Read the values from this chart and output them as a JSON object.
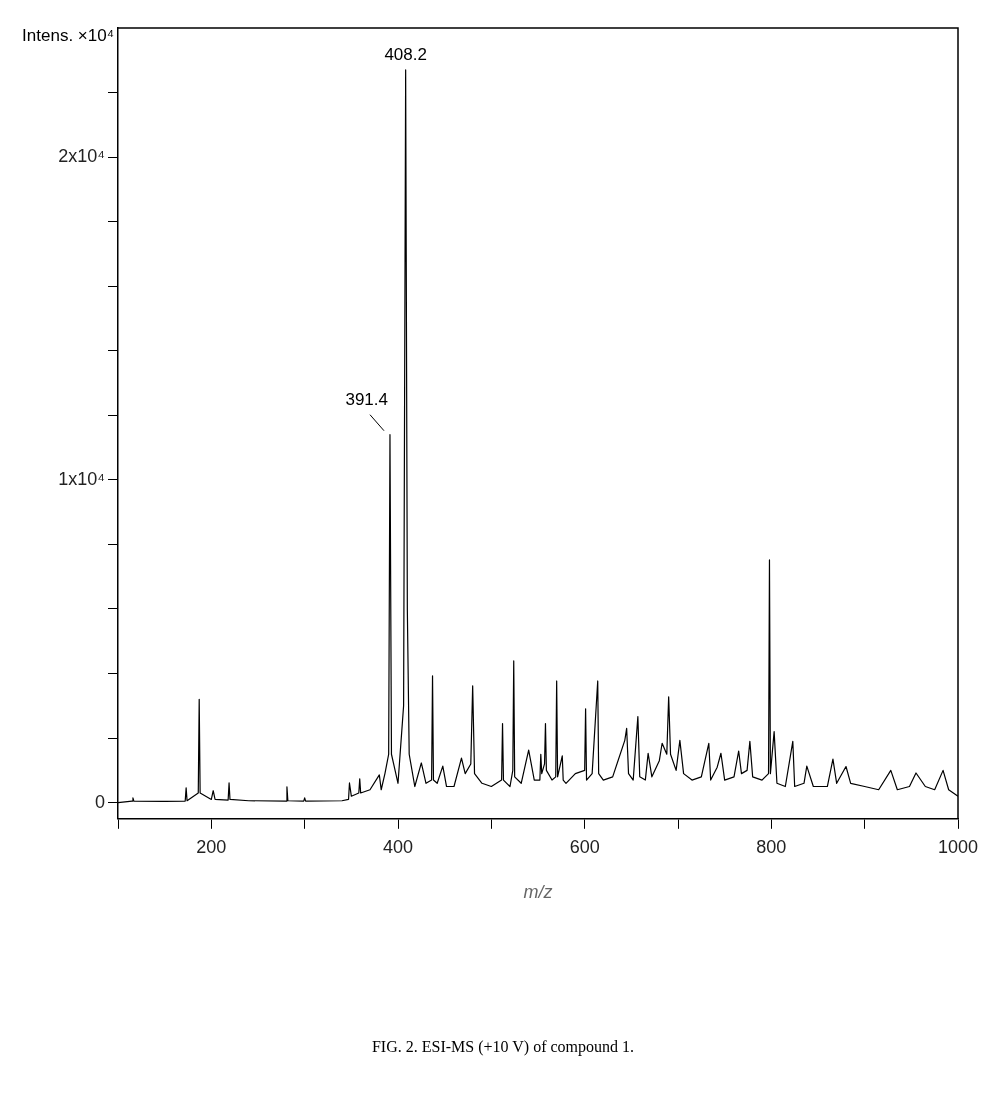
{
  "chart_data": {
    "type": "line",
    "title": "FIG. 2. ESI-MS (+10 V) of compound 1.",
    "xlabel": "m/z",
    "ylabel": "Intens. ×10⁴",
    "marker": "none",
    "grid": false,
    "legend": false,
    "xlim": [
      100,
      1000
    ],
    "xticks": [
      {
        "value": 100,
        "label": null
      },
      200,
      {
        "value": 300,
        "label": null
      },
      400,
      {
        "value": 500,
        "label": null
      },
      600,
      {
        "value": 700,
        "label": null
      },
      800,
      {
        "value": 900,
        "label": null
      },
      1000
    ],
    "ylim": [
      -500,
      24000
    ],
    "yticks": [
      0,
      {
        "value": 2000,
        "label": null
      },
      {
        "value": 4000,
        "label": null
      },
      {
        "value": 6000,
        "label": null
      },
      {
        "value": 8000,
        "label": null
      },
      {
        "value": 10000,
        "label": "1x10⁴"
      },
      {
        "value": 12000,
        "label": null
      },
      {
        "value": 14000,
        "label": null
      },
      {
        "value": 16000,
        "label": null
      },
      {
        "value": 18000,
        "label": null
      },
      {
        "value": 20000,
        "label": "2x10⁴"
      },
      {
        "value": 22000,
        "label": null
      }
    ],
    "annotations": [
      {
        "text": "408.2",
        "x": 408.2,
        "y": 22700
      },
      {
        "text": "391.4",
        "x": 391.4,
        "y": 11400
      }
    ],
    "series": [
      {
        "color": "#000000",
        "x": [
          100,
          115,
          116,
          117,
          150,
          172,
          173,
          174,
          186,
          187,
          188,
          200,
          202,
          204,
          218,
          219,
          220,
          240,
          280,
          281,
          282,
          299,
          300,
          301,
          340,
          347,
          348,
          350,
          358,
          359,
          360,
          370,
          380,
          382,
          386,
          390,
          391.4,
          393,
          400,
          406,
          408.2,
          410,
          412,
          418,
          425,
          430,
          436,
          437,
          438,
          442,
          448,
          452,
          460,
          468,
          472,
          478,
          480,
          482,
          490,
          500,
          511,
          512,
          513,
          520,
          523,
          524,
          525,
          532,
          540,
          546,
          552,
          553,
          554,
          557,
          558,
          559,
          565,
          569,
          570,
          571,
          576,
          577,
          580,
          590,
          600,
          601,
          602,
          608,
          614,
          615,
          620,
          630,
          643,
          645,
          647,
          652,
          657,
          659,
          665,
          668,
          672,
          680,
          683,
          688,
          690,
          692,
          698,
          702,
          706,
          715,
          725,
          733,
          735,
          742,
          746,
          750,
          760,
          765,
          768,
          774,
          777,
          780,
          790,
          797,
          798,
          799,
          803,
          806,
          815,
          823,
          825,
          835,
          838,
          845,
          860,
          866,
          870,
          880,
          885,
          900,
          915,
          928,
          935,
          948,
          955,
          965,
          975,
          984,
          990,
          1000
        ],
        "values": [
          0,
          50,
          150,
          50,
          40,
          50,
          460,
          60,
          300,
          3200,
          300,
          100,
          370,
          100,
          80,
          610,
          100,
          60,
          50,
          490,
          60,
          50,
          150,
          50,
          60,
          100,
          610,
          200,
          300,
          740,
          300,
          400,
          860,
          400,
          900,
          1500,
          11400,
          1500,
          600,
          3000,
          22700,
          6000,
          1500,
          500,
          1230,
          600,
          700,
          3930,
          700,
          600,
          1130,
          500,
          500,
          1380,
          900,
          1200,
          3620,
          900,
          600,
          500,
          700,
          2450,
          700,
          500,
          1000,
          4390,
          800,
          600,
          1630,
          700,
          700,
          1500,
          900,
          1200,
          2450,
          1000,
          700,
          800,
          3770,
          800,
          1450,
          700,
          600,
          900,
          1000,
          2910,
          700,
          900,
          3770,
          900,
          700,
          800,
          1930,
          2300,
          900,
          700,
          2670,
          800,
          700,
          1530,
          800,
          1300,
          1840,
          1500,
          3280,
          1500,
          1000,
          1930,
          900,
          700,
          800,
          1840,
          700,
          1100,
          1530,
          700,
          800,
          1600,
          900,
          1000,
          1900,
          800,
          700,
          900,
          7520,
          900,
          2200,
          600,
          500,
          1900,
          500,
          600,
          1130,
          500,
          500,
          1350,
          600,
          1120,
          600,
          500,
          400,
          1000,
          400,
          500,
          920,
          500,
          400,
          1000,
          400,
          200
        ]
      }
    ]
  }
}
